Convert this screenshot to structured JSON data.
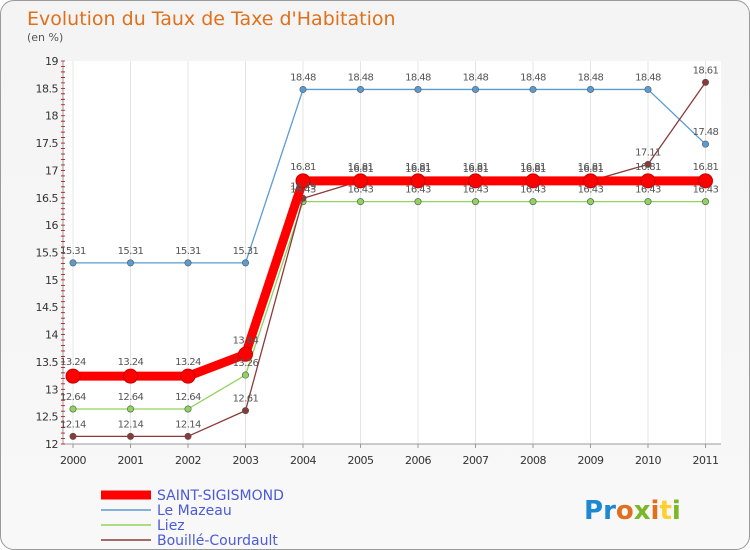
{
  "chart_data": {
    "type": "line",
    "title": "Evolution du Taux de Taxe d'Habitation",
    "subtitle": "(en %)",
    "xlabel": "",
    "ylabel": "",
    "categories": [
      "2000",
      "2001",
      "2002",
      "2003",
      "2004",
      "2005",
      "2006",
      "2007",
      "2008",
      "2009",
      "2010",
      "2011"
    ],
    "ylim": [
      12,
      19
    ],
    "yticks": [
      "12",
      "12.5",
      "13",
      "13.5",
      "14",
      "14.5",
      "15",
      "15.5",
      "16",
      "16.5",
      "17",
      "17.5",
      "18",
      "18.5",
      "19"
    ],
    "grid": "vertical",
    "legend_position": "bottom-left",
    "series": [
      {
        "name": "Le Mazeau",
        "color": "#5b9bd0",
        "values": [
          15.31,
          15.31,
          15.31,
          15.31,
          18.48,
          18.48,
          18.48,
          18.48,
          18.48,
          18.48,
          18.48,
          17.48
        ],
        "labels": [
          "15.31",
          "15.31",
          "15.31",
          "15.31",
          "18.48",
          "18.48",
          "18.48",
          "18.48",
          "18.48",
          "18.48",
          "18.48",
          "17.48"
        ]
      },
      {
        "name": "Liez",
        "color": "#8fd45e",
        "values": [
          12.64,
          12.64,
          12.64,
          13.26,
          16.43,
          16.43,
          16.43,
          16.43,
          16.43,
          16.43,
          16.43,
          16.43
        ],
        "labels": [
          "12.64",
          "12.64",
          "12.64",
          "13.26",
          "16.43",
          "16.43",
          "16.43",
          "16.43",
          "16.43",
          "16.43",
          "16.43",
          "16.43"
        ]
      },
      {
        "name": "Bouillé-Courdault",
        "color": "#8b3a3a",
        "values": [
          12.14,
          12.14,
          12.14,
          12.61,
          16.49,
          16.81,
          16.81,
          16.81,
          16.81,
          16.81,
          17.11,
          18.61
        ],
        "labels": [
          "12.14",
          "12.14",
          "12.14",
          "12.61",
          "16.49",
          "16.81",
          "16.81",
          "16.81",
          "16.81",
          "16.81",
          "17.11",
          "18.61"
        ]
      },
      {
        "name": "SAINT-SIGISMOND",
        "color": "#ff0000",
        "values": [
          13.24,
          13.24,
          13.24,
          13.64,
          16.81,
          16.81,
          16.81,
          16.81,
          16.81,
          16.81,
          16.81,
          16.81
        ],
        "labels": [
          "13.24",
          "13.24",
          "13.24",
          "13.64",
          "16.81",
          "16.81",
          "16.81",
          "16.81",
          "16.81",
          "16.81",
          "16.81",
          "16.81"
        ]
      }
    ]
  },
  "legend_items": [
    "SAINT-SIGISMOND",
    "Le Mazeau",
    "Liez",
    "Bouillé-Courdault"
  ],
  "logo": {
    "text": "Proxiti",
    "colors": [
      "#1e88d0",
      "#e07020",
      "#7ab828",
      "#ffd030"
    ]
  }
}
